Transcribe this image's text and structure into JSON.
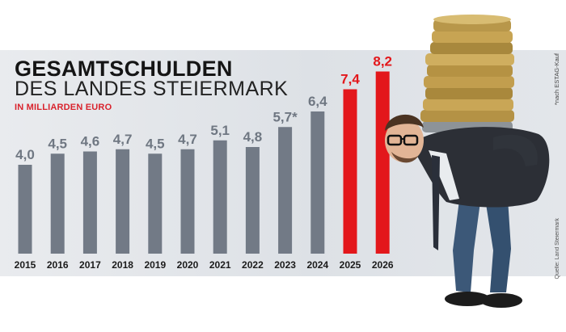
{
  "header": {
    "title_line1": "GESAMTSCHULDEN",
    "title_line2": "DES LANDES STEIERMARK",
    "unit": "IN MILLIARDEN EURO"
  },
  "notes": {
    "footnote": "*nach ESTAG-Kauf",
    "source": "Quelle: Land Steiermark"
  },
  "colors": {
    "bar_default": "#727a86",
    "bar_highlight": "#e3171b",
    "value_default": "#6f7782",
    "value_highlight": "#e3171b",
    "year_label": "#1b1b1b"
  },
  "illustration": "man-carrying-euro-coin-stack",
  "chart_data": {
    "type": "bar",
    "title": "GESAMTSCHULDEN DES LANDES STEIERMARK",
    "subtitle": "IN MILLIARDEN EURO",
    "categories": [
      "2015",
      "2016",
      "2017",
      "2018",
      "2019",
      "2020",
      "2021",
      "2022",
      "2023",
      "2024",
      "2025",
      "2026"
    ],
    "values": [
      4.0,
      4.5,
      4.6,
      4.7,
      4.5,
      4.7,
      5.1,
      4.8,
      5.7,
      6.4,
      7.4,
      8.2
    ],
    "value_labels": [
      "4,0",
      "4,5",
      "4,6",
      "4,7",
      "4,5",
      "4,7",
      "5,1",
      "4,8",
      "5,7*",
      "6,4",
      "7,4",
      "8,2"
    ],
    "highlighted": [
      false,
      false,
      false,
      false,
      false,
      false,
      false,
      false,
      false,
      false,
      true,
      true
    ],
    "xlabel": "",
    "ylabel": "",
    "ylim": [
      0,
      8.2
    ],
    "grid": false,
    "legend": "none"
  }
}
